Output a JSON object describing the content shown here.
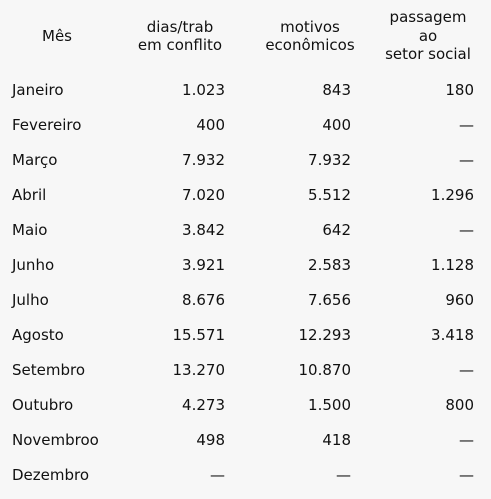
{
  "table": {
    "header": [
      [
        "Mês"
      ],
      [
        "dias/trab",
        "em conflito"
      ],
      [
        "motivos",
        "econômicos"
      ],
      [
        "passagem",
        "ao",
        "setor social"
      ]
    ],
    "rows": [
      [
        "Janeiro",
        "1.023",
        "843",
        "180"
      ],
      [
        "Fevereiro",
        "400",
        "400",
        "—"
      ],
      [
        "Março",
        "7.932",
        "7.932",
        "—"
      ],
      [
        "Abril",
        "7.020",
        "5.512",
        "1.296"
      ],
      [
        "Maio",
        "3.842",
        "642",
        "—"
      ],
      [
        "Junho",
        "3.921",
        "2.583",
        "1.128"
      ],
      [
        "Julho",
        "8.676",
        "7.656",
        "960"
      ],
      [
        "Agosto",
        "15.571",
        "12.293",
        "3.418"
      ],
      [
        "Setembro",
        "13.270",
        "10.870",
        "—"
      ],
      [
        "Outubro",
        "4.273",
        "1.500",
        "800"
      ],
      [
        "Novembroo",
        "498",
        "418",
        "—"
      ],
      [
        "Dezembro",
        "—",
        "—",
        "—"
      ]
    ]
  }
}
